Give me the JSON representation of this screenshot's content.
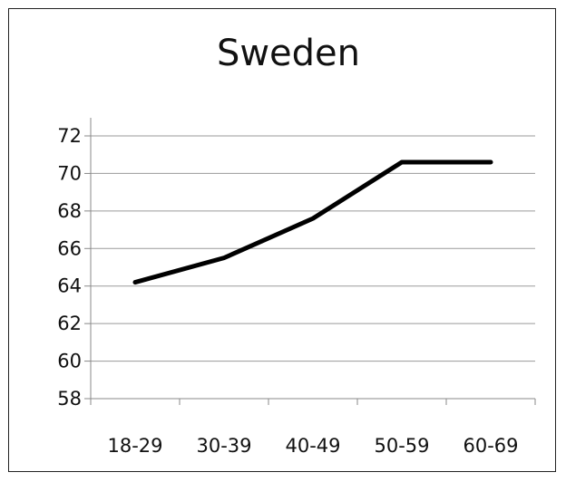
{
  "chart_data": {
    "type": "line",
    "title": "Sweden",
    "xlabel": "",
    "ylabel": "",
    "categories": [
      "18-29",
      "30-39",
      "40-49",
      "50-59",
      "60-69"
    ],
    "values": [
      64.2,
      65.5,
      67.6,
      70.6,
      70.6
    ],
    "ylim": [
      58,
      72
    ],
    "yticks": [
      "58",
      "60",
      "62",
      "64",
      "66",
      "68",
      "70",
      "72"
    ],
    "grid": true,
    "legend": "none",
    "line_color": "#000000"
  }
}
